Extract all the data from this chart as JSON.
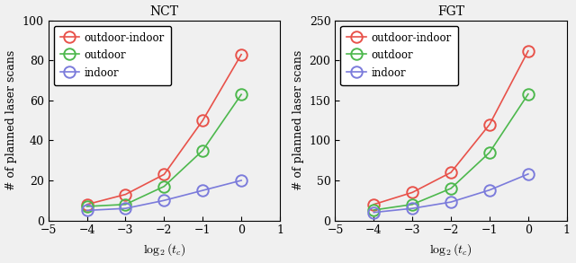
{
  "nct": {
    "title": "NCT",
    "x": [
      -4,
      -3,
      -2,
      -1,
      0
    ],
    "outdoor_indoor": [
      8,
      13,
      23,
      50,
      83
    ],
    "outdoor": [
      7,
      8,
      17,
      35,
      63
    ],
    "indoor": [
      5,
      6,
      10,
      15,
      20
    ]
  },
  "fgt": {
    "title": "FGT",
    "x": [
      -4,
      -3,
      -2,
      -1,
      0
    ],
    "outdoor_indoor": [
      20,
      35,
      60,
      120,
      212
    ],
    "outdoor": [
      13,
      20,
      40,
      85,
      158
    ],
    "indoor": [
      10,
      15,
      23,
      38,
      58
    ]
  },
  "ylabel": "# of planned laser scans",
  "legend_labels": [
    "outdoor-indoor",
    "outdoor",
    "indoor"
  ],
  "colors": [
    "#e8524a",
    "#4db84d",
    "#7b7bdb"
  ],
  "xlim": [
    -5,
    1
  ],
  "nct_ylim": [
    0,
    100
  ],
  "fgt_ylim": [
    0,
    250
  ],
  "nct_yticks": [
    0,
    20,
    40,
    60,
    80,
    100
  ],
  "fgt_yticks": [
    0,
    50,
    100,
    150,
    200,
    250
  ],
  "xticks": [
    -5,
    -4,
    -3,
    -2,
    -1,
    0,
    1
  ],
  "bg_color": "#f0f0f0",
  "fig_bg_color": "#f0f0f0",
  "marker_size": 9,
  "linewidth": 1.2
}
